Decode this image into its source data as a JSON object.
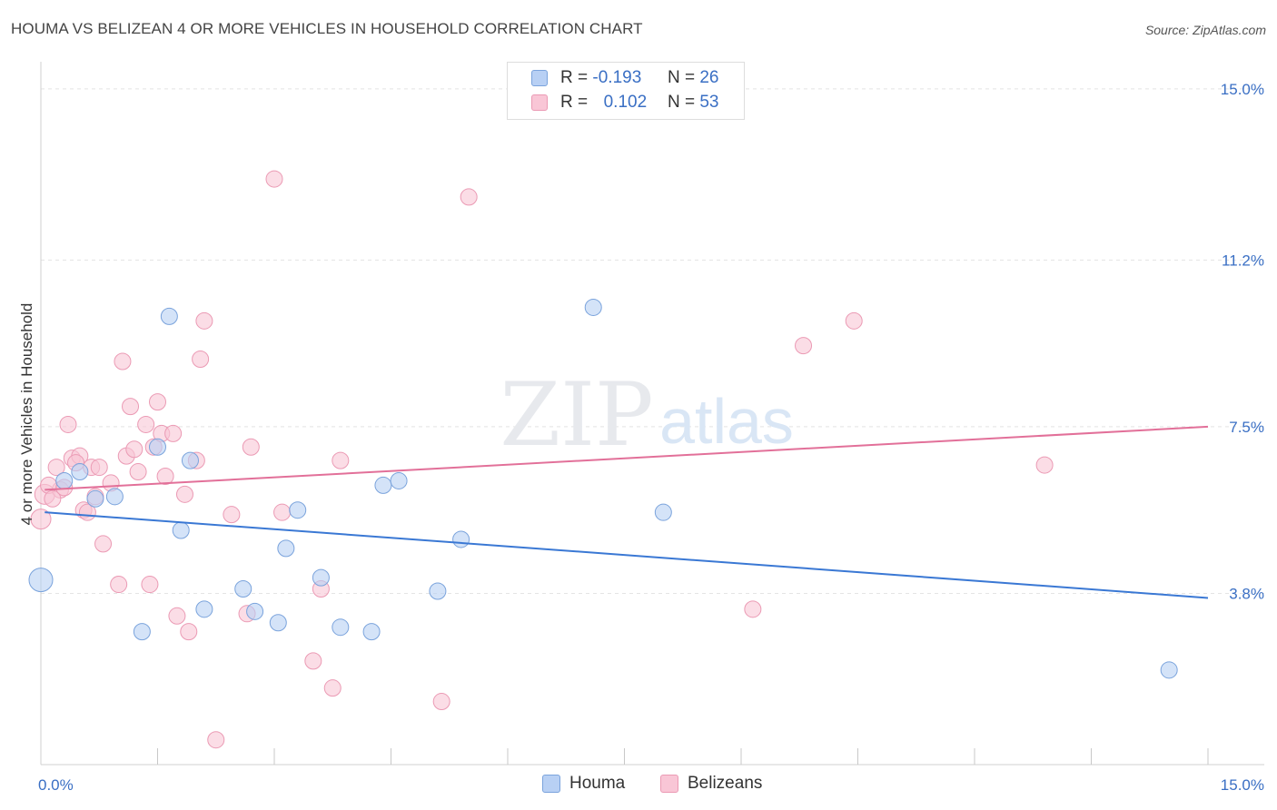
{
  "title": "HOUMA VS BELIZEAN 4 OR MORE VEHICLES IN HOUSEHOLD CORRELATION CHART",
  "source": "Source: ZipAtlas.com",
  "watermark": {
    "zip": "ZIP",
    "atlas": "atlas"
  },
  "legend": {
    "r_label": "R =",
    "n_label": "N =",
    "houma": {
      "r": "-0.193",
      "n": "26"
    },
    "belizeans": {
      "r": "0.102",
      "n": "53"
    }
  },
  "colors": {
    "houma_fill": "#b8d0f4",
    "houma_stroke": "#7aa3dc",
    "houma_line": "#3a78d4",
    "belizean_fill": "#f9c6d6",
    "belizean_stroke": "#eb9ab4",
    "belizean_line": "#e27099",
    "axis_text": "#3a6fc4",
    "grid": "#e4e4e4"
  },
  "chart_data": {
    "type": "scatter",
    "title": "HOUMA VS BELIZEAN 4 OR MORE VEHICLES IN HOUSEHOLD CORRELATION CHART",
    "xlabel": "",
    "ylabel": "4 or more Vehicles in Household",
    "xlim": [
      0,
      15
    ],
    "ylim": [
      0,
      15.4
    ],
    "x_tick_labels": [
      {
        "value": 0,
        "label": "0.0%"
      },
      {
        "value": 15,
        "label": "15.0%"
      }
    ],
    "y_tick_labels": [
      {
        "value": 3.8,
        "label": "3.8%"
      },
      {
        "value": 7.5,
        "label": "7.5%"
      },
      {
        "value": 11.2,
        "label": "11.2%"
      },
      {
        "value": 15.0,
        "label": "15.0%"
      }
    ],
    "x_minor_ticks": [
      1.5,
      3.0,
      4.5,
      6.0,
      7.5,
      9.0,
      10.5,
      12.0,
      13.5,
      15.0
    ],
    "series": [
      {
        "name": "Houma",
        "trend": [
          [
            0.05,
            5.6
          ],
          [
            15.0,
            3.7
          ]
        ],
        "points": [
          [
            0.0,
            4.1,
            13
          ],
          [
            0.3,
            6.3,
            9
          ],
          [
            0.5,
            6.5,
            9
          ],
          [
            0.7,
            5.9,
            9
          ],
          [
            0.95,
            5.95,
            9
          ],
          [
            1.3,
            2.95,
            9
          ],
          [
            1.65,
            9.95,
            9
          ],
          [
            1.5,
            7.05,
            9
          ],
          [
            1.8,
            5.2,
            9
          ],
          [
            1.92,
            6.75,
            9
          ],
          [
            2.1,
            3.45,
            9
          ],
          [
            2.6,
            3.9,
            9
          ],
          [
            2.75,
            3.4,
            9
          ],
          [
            3.05,
            3.15,
            9
          ],
          [
            3.15,
            4.8,
            9
          ],
          [
            3.3,
            5.65,
            9
          ],
          [
            3.6,
            4.15,
            9
          ],
          [
            3.85,
            3.05,
            9
          ],
          [
            4.25,
            2.95,
            9
          ],
          [
            4.4,
            6.2,
            9
          ],
          [
            4.6,
            6.3,
            9
          ],
          [
            5.1,
            3.85,
            9
          ],
          [
            5.4,
            5.0,
            9
          ],
          [
            7.1,
            10.15,
            9
          ],
          [
            8.0,
            5.6,
            9
          ],
          [
            14.5,
            2.1,
            9
          ]
        ]
      },
      {
        "name": "Belizeans",
        "trend": [
          [
            0.05,
            6.1
          ],
          [
            15.0,
            7.5
          ]
        ],
        "points": [
          [
            0.0,
            5.45,
            11
          ],
          [
            0.05,
            6.0,
            11
          ],
          [
            0.2,
            6.6,
            9
          ],
          [
            0.25,
            6.1,
            9
          ],
          [
            0.35,
            7.55,
            9
          ],
          [
            0.4,
            6.8,
            9
          ],
          [
            0.5,
            6.85,
            9
          ],
          [
            0.55,
            5.65,
            9
          ],
          [
            0.6,
            5.6,
            9
          ],
          [
            0.65,
            6.6,
            9
          ],
          [
            0.7,
            5.95,
            9
          ],
          [
            0.8,
            4.9,
            9
          ],
          [
            0.9,
            6.25,
            9
          ],
          [
            1.0,
            4.0,
            9
          ],
          [
            1.05,
            8.95,
            9
          ],
          [
            1.1,
            6.85,
            9
          ],
          [
            1.15,
            7.95,
            9
          ],
          [
            1.2,
            7.0,
            9
          ],
          [
            1.25,
            6.5,
            9
          ],
          [
            1.35,
            7.55,
            9
          ],
          [
            1.4,
            4.0,
            9
          ],
          [
            1.45,
            7.05,
            9
          ],
          [
            1.5,
            8.05,
            9
          ],
          [
            1.55,
            7.35,
            9
          ],
          [
            1.6,
            6.4,
            9
          ],
          [
            1.7,
            7.35,
            9
          ],
          [
            1.75,
            3.3,
            9
          ],
          [
            1.85,
            6.0,
            9
          ],
          [
            1.9,
            2.95,
            9
          ],
          [
            2.0,
            6.75,
            9
          ],
          [
            2.05,
            9.0,
            9
          ],
          [
            2.1,
            9.85,
            9
          ],
          [
            2.25,
            0.55,
            9
          ],
          [
            2.45,
            5.55,
            9
          ],
          [
            2.65,
            3.35,
            9
          ],
          [
            2.7,
            7.05,
            9
          ],
          [
            3.0,
            13.0,
            9
          ],
          [
            3.1,
            5.6,
            9
          ],
          [
            3.5,
            2.3,
            9
          ],
          [
            3.6,
            3.9,
            9
          ],
          [
            3.75,
            1.7,
            9
          ],
          [
            3.85,
            6.75,
            9
          ],
          [
            5.15,
            1.4,
            9
          ],
          [
            5.5,
            12.6,
            9
          ],
          [
            9.15,
            3.45,
            9
          ],
          [
            9.8,
            9.3,
            9
          ],
          [
            10.45,
            9.85,
            9
          ],
          [
            12.9,
            6.65,
            9
          ],
          [
            0.1,
            6.2,
            9
          ],
          [
            0.15,
            5.9,
            9
          ],
          [
            0.3,
            6.15,
            9
          ],
          [
            0.45,
            6.7,
            9
          ],
          [
            0.75,
            6.6,
            9
          ]
        ]
      }
    ]
  },
  "bottom_legend": {
    "houma": "Houma",
    "belizeans": "Belizeans"
  }
}
